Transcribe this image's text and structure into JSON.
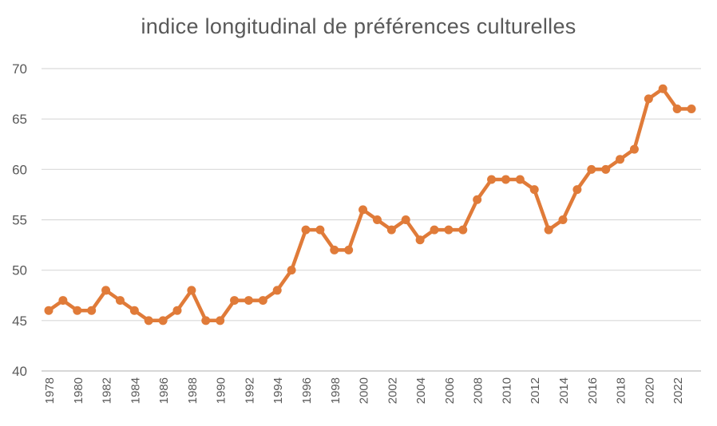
{
  "chart_data": {
    "type": "line",
    "title": "indice longitudinal de préférences culturelles",
    "xlabel": "",
    "ylabel": "",
    "ylim": [
      40,
      70
    ],
    "yticks": [
      40,
      45,
      50,
      55,
      60,
      65,
      70
    ],
    "xticks": [
      1978,
      1980,
      1982,
      1984,
      1986,
      1988,
      1990,
      1992,
      1994,
      1996,
      1998,
      2000,
      2002,
      2004,
      2006,
      2008,
      2010,
      2012,
      2014,
      2016,
      2018,
      2020,
      2022
    ],
    "grid": true,
    "legend": "none",
    "color": "#e07b39",
    "x": [
      1978,
      1979,
      1980,
      1981,
      1982,
      1983,
      1984,
      1985,
      1986,
      1987,
      1988,
      1989,
      1990,
      1991,
      1992,
      1993,
      1994,
      1995,
      1996,
      1997,
      1998,
      1999,
      2000,
      2001,
      2002,
      2003,
      2004,
      2005,
      2006,
      2007,
      2008,
      2009,
      2010,
      2011,
      2012,
      2013,
      2014,
      2015,
      2016,
      2017,
      2018,
      2019,
      2020,
      2021,
      2022,
      2023
    ],
    "series": [
      {
        "values": [
          46,
          47,
          46,
          46,
          48,
          47,
          46,
          45,
          45,
          46,
          48,
          45,
          45,
          47,
          47,
          47,
          48,
          50,
          54,
          54,
          52,
          52,
          56,
          55,
          54,
          55,
          53,
          54,
          54,
          54,
          57,
          59,
          59,
          59,
          58,
          54,
          55,
          58,
          60,
          60,
          61,
          62,
          67,
          68,
          66,
          66
        ]
      }
    ]
  }
}
